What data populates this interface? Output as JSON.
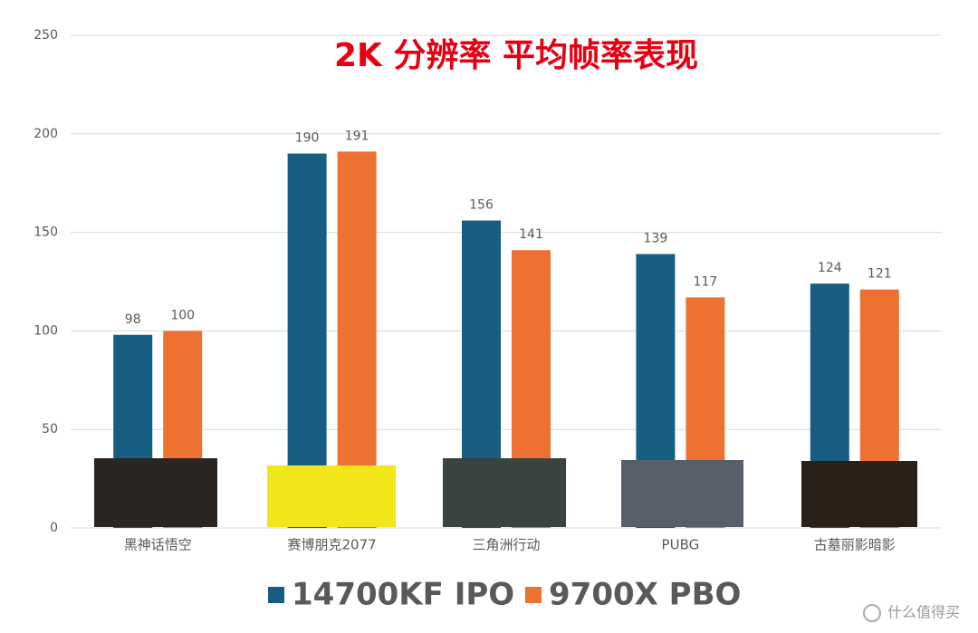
{
  "chart_data": {
    "type": "bar",
    "title": "2K 分辨率 平均帧率表现",
    "categories": [
      "黑神话悟空",
      "赛博朋克2077",
      "三角洲行动",
      "PUBG",
      "古墓丽影暗影"
    ],
    "series": [
      {
        "name": "14700KF IPO",
        "color": "#175e82",
        "values": [
          98,
          190,
          156,
          139,
          124
        ]
      },
      {
        "name": "9700X PBO",
        "color": "#ed7232",
        "values": [
          100,
          191,
          141,
          117,
          121
        ]
      }
    ],
    "ylim": [
      0,
      250
    ],
    "yticks": [
      0,
      50,
      100,
      150,
      200,
      250
    ],
    "grid": true,
    "legend": "bottom",
    "watermark": "什么值得买"
  }
}
